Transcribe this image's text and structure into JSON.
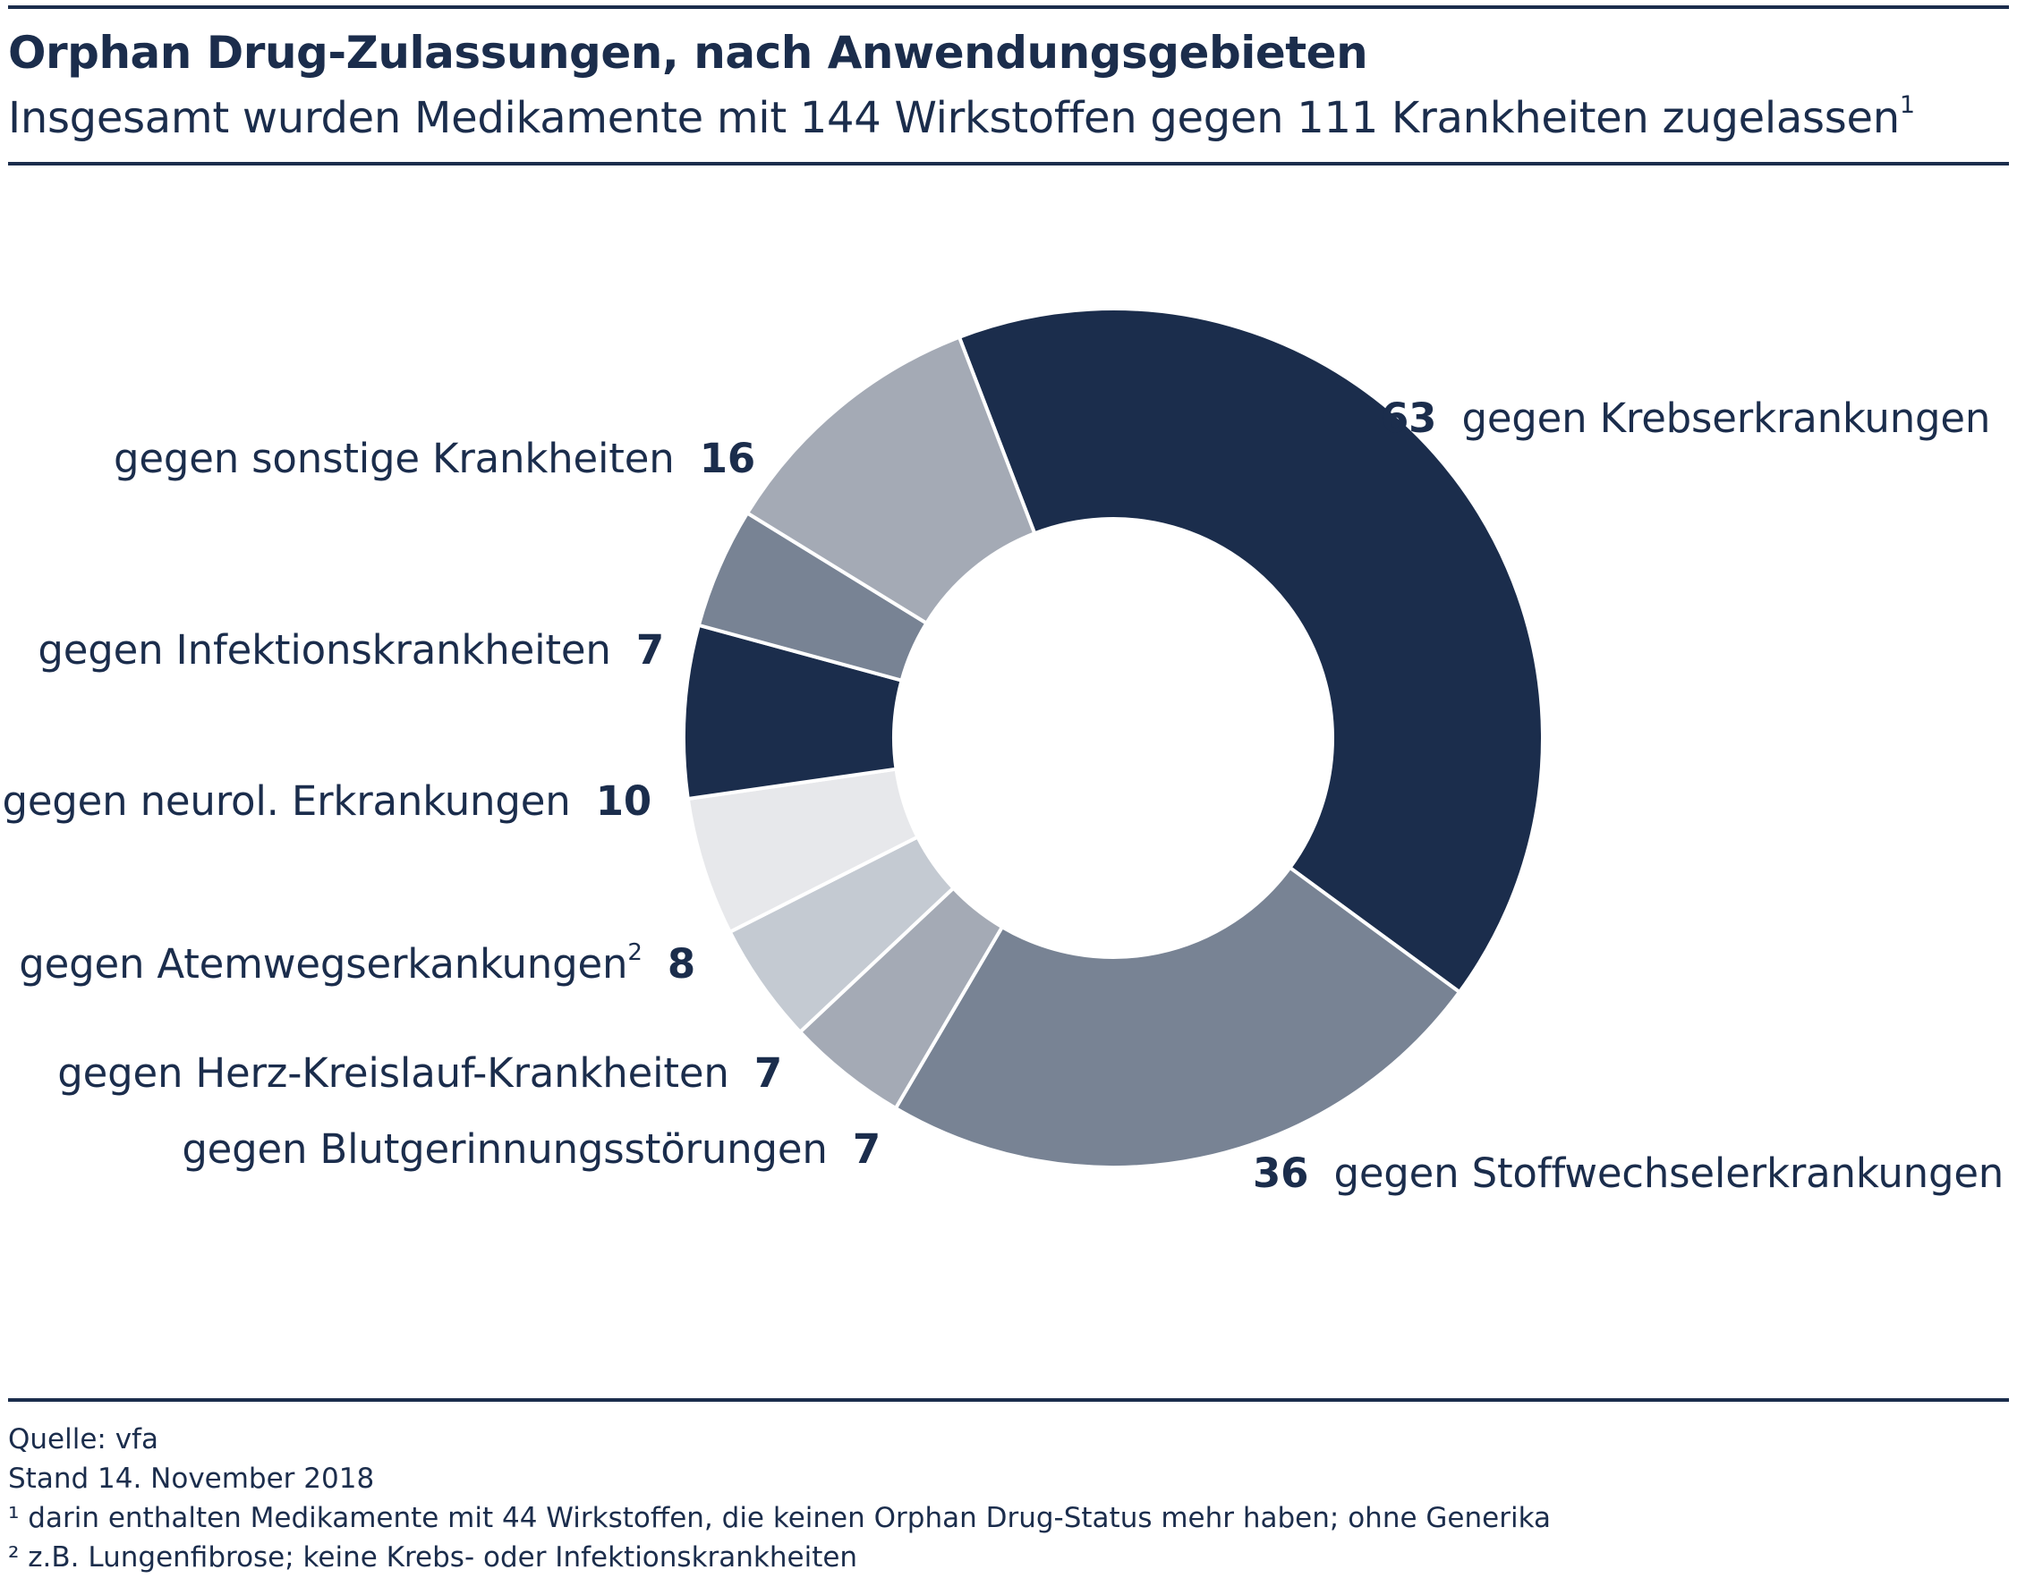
{
  "header": {
    "title": "Orphan Drug-Zulassungen, nach Anwendungsgebieten",
    "subtitle": "Insgesamt wurden Medikamente mit 144 Wirkstoffen gegen 111 Krankheiten zugelassen",
    "subtitle_note": "1"
  },
  "chart_data": {
    "type": "pie",
    "variant": "donut",
    "categories": [
      "gegen Krebserkrankungen",
      "gegen Stoffwechselerkrankungen",
      "gegen Blutgerinnungsstörungen",
      "gegen Herz-Kreislauf-Krankheiten",
      "gegen Atemwegserkankungen",
      "gegen neurol. Erkrankungen",
      "gegen Infektionskrankheiten",
      "gegen sonstige Krankheiten"
    ],
    "values": [
      63,
      36,
      7,
      7,
      8,
      10,
      7,
      16
    ],
    "colors": [
      "#1b2d4c",
      "#788394",
      "#a4aab5",
      "#c4cad2",
      "#e7e8eb",
      "#1b2d4c",
      "#788394",
      "#a4aab5"
    ],
    "notes": [
      "",
      "",
      "",
      "",
      "2",
      "",
      "",
      ""
    ],
    "start_angle_deg": -21,
    "direction": "clockwise"
  },
  "footer": {
    "source": "Quelle: vfa",
    "date": "Stand 14. November 2018",
    "note1": "¹ darin enthalten Medikamente mit 44 Wirkstoffen, die keinen Orphan Drug-Status mehr haben; ohne Generika",
    "note2": "² z.B. Lungenfibrose; keine Krebs- oder Infektionskrankheiten"
  }
}
